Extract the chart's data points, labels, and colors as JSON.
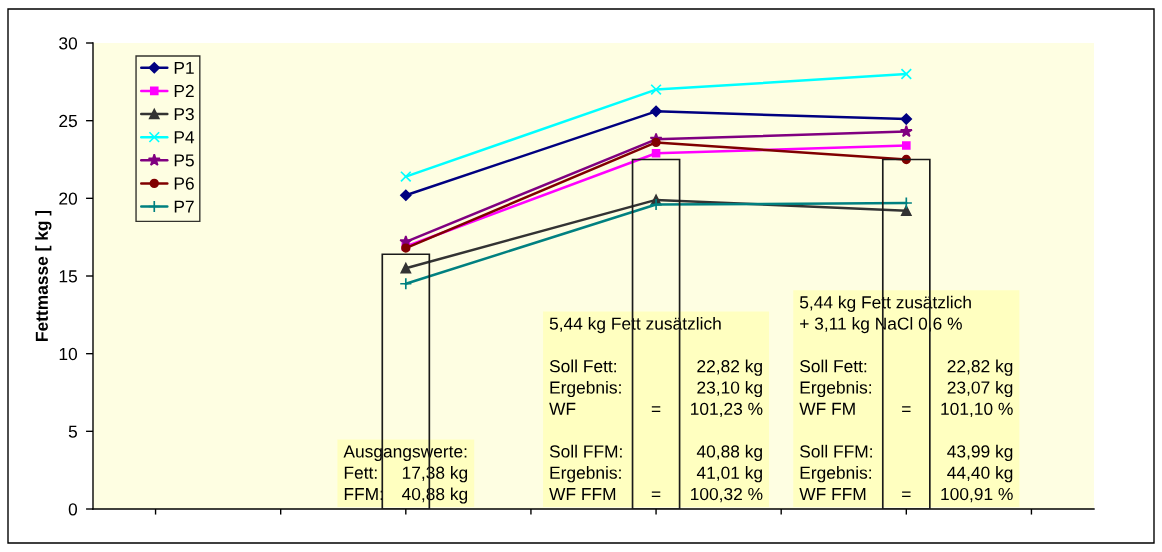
{
  "chart_data": {
    "type": "line",
    "ylabel": "Fettmasse [ kg ]",
    "categories": [
      null,
      null,
      null,
      null,
      null,
      null,
      null,
      null
    ],
    "series": [
      {
        "name": "P1",
        "color": "#000080",
        "marker": "diamond",
        "values": [
          null,
          null,
          20.2,
          null,
          25.6,
          null,
          25.1,
          null
        ]
      },
      {
        "name": "P2",
        "color": "#ff00ff",
        "marker": "square",
        "values": [
          null,
          null,
          16.9,
          null,
          22.9,
          null,
          23.4,
          null
        ]
      },
      {
        "name": "P3",
        "color": "#333333",
        "marker": "triangle",
        "values": [
          null,
          null,
          15.5,
          null,
          19.9,
          null,
          19.2,
          null
        ]
      },
      {
        "name": "P4",
        "color": "#00ffff",
        "marker": "cross",
        "values": [
          null,
          null,
          21.4,
          null,
          27.0,
          null,
          28.0,
          null
        ]
      },
      {
        "name": "P5",
        "color": "#800080",
        "marker": "star",
        "values": [
          null,
          null,
          17.2,
          null,
          23.8,
          null,
          24.3,
          null
        ]
      },
      {
        "name": "P6",
        "color": "#800000",
        "marker": "circle",
        "values": [
          null,
          null,
          16.8,
          null,
          23.6,
          null,
          22.5,
          null
        ]
      },
      {
        "name": "P7",
        "color": "#008080",
        "marker": "plus",
        "values": [
          null,
          null,
          14.5,
          null,
          19.6,
          null,
          19.7,
          null
        ]
      },
      {
        "type": "bar",
        "color": "#1a1a1a",
        "values": [
          null,
          null,
          16.4,
          null,
          22.5,
          null,
          22.5,
          null
        ]
      }
    ],
    "ylim": [
      0,
      30
    ],
    "yticks": [
      0,
      5,
      10,
      15,
      20,
      25,
      30
    ],
    "legend": "top left",
    "tick_labels": "y",
    "line_style": "solid",
    "annotations": [
      "Ausgangswerte:\nFett:\t17,38 kg\nFFM:\t40,88 kg",
      "5,44 kg Fett zusätzlich\n\nSoll Fett:\t22,82 kg\nErgebnis:\t23,10 kg\nWF\t=\t101,23 %\n\nSoll FFM:\t40,88 kg\nErgebnis:\t41,01 kg\nWF FFM\t=\t100,32 %",
      "5,44 kg Fett zusätzlich\n+ 3,11 kg NaCl 0,6 %\n\nSoll Fett:\t22,82 kg\nErgebnis:\t23,07 kg\nWF FM\t=\t101,10 %\n\nSoll FFM:\t43,99 kg\nErgebnis:\t44,40 kg\nWF FFM\t=\t100,91 %"
    ]
  }
}
